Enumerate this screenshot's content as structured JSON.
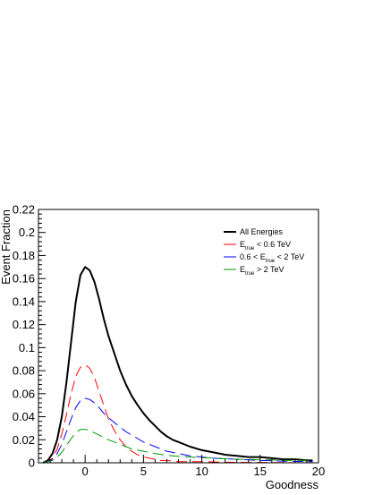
{
  "chart_data": {
    "type": "line",
    "xlabel": "Goodness",
    "ylabel": "Event Fraction",
    "xlim": [
      -4,
      20
    ],
    "ylim": [
      0,
      0.22
    ],
    "x_ticks": [
      0,
      5,
      10,
      15,
      20
    ],
    "y_ticks": [
      0,
      0.02,
      0.04,
      0.06,
      0.08,
      0.1,
      0.12,
      0.14,
      0.16,
      0.18,
      0.2,
      0.22
    ],
    "x_tick_labels": [
      "0",
      "5",
      "10",
      "15",
      "20"
    ],
    "y_tick_labels": [
      "0",
      "0.02",
      "0.04",
      "0.06",
      "0.08",
      "0.1",
      "0.12",
      "0.14",
      "0.16",
      "0.18",
      "0.2",
      "0.22"
    ],
    "grid": false,
    "legend_position": "top-right",
    "series": [
      {
        "name": "All Energies",
        "legend": {
          "main": "All Energies"
        },
        "color": "#000000",
        "style": "solid",
        "x": [
          -3.6,
          -3.2,
          -2.8,
          -2.4,
          -2.0,
          -1.6,
          -1.2,
          -0.8,
          -0.4,
          0.0,
          0.4,
          0.8,
          1.2,
          1.6,
          2.0,
          2.5,
          3.0,
          3.5,
          4.0,
          4.5,
          5.0,
          5.5,
          6.0,
          6.5,
          7.0,
          7.5,
          8.0,
          9.0,
          10.0,
          11.0,
          12.0,
          13.0,
          14.0,
          15.0,
          16.0,
          17.0,
          18.0,
          19.0,
          19.5
        ],
        "y": [
          0.0,
          0.002,
          0.008,
          0.02,
          0.04,
          0.07,
          0.105,
          0.14,
          0.163,
          0.17,
          0.167,
          0.157,
          0.142,
          0.125,
          0.11,
          0.095,
          0.08,
          0.068,
          0.058,
          0.05,
          0.043,
          0.037,
          0.032,
          0.027,
          0.023,
          0.02,
          0.018,
          0.014,
          0.011,
          0.009,
          0.007,
          0.006,
          0.005,
          0.005,
          0.004,
          0.003,
          0.003,
          0.002,
          0.002
        ]
      },
      {
        "name": "E_true < 0.6 TeV",
        "legend": {
          "pre": "E",
          "sub": "true",
          "post": " < 0.6 TeV"
        },
        "color": "#ff0000",
        "style": "dashed",
        "x": [
          -3.6,
          -3.2,
          -2.8,
          -2.4,
          -2.0,
          -1.6,
          -1.2,
          -0.8,
          -0.4,
          0.0,
          0.4,
          0.8,
          1.2,
          1.6,
          2.0,
          2.5,
          3.0,
          3.5,
          4.0,
          4.5,
          5.0,
          5.5,
          6.0,
          6.5,
          7.0,
          8.0,
          9.0,
          10.0,
          12.0,
          14.0,
          16.0,
          18.0,
          19.5
        ],
        "y": [
          0.0,
          0.001,
          0.004,
          0.012,
          0.025,
          0.042,
          0.06,
          0.075,
          0.083,
          0.085,
          0.082,
          0.074,
          0.062,
          0.05,
          0.038,
          0.028,
          0.02,
          0.014,
          0.01,
          0.007,
          0.005,
          0.004,
          0.003,
          0.002,
          0.002,
          0.001,
          0.001,
          0.001,
          0.0005,
          0.0003,
          0.0002,
          0.0001,
          0.0001
        ]
      },
      {
        "name": "0.6 < E_true < 2 TeV",
        "legend": {
          "pre": "0.6 < E",
          "sub": "true",
          "post": " < 2 TeV"
        },
        "color": "#0000ff",
        "style": "dashed",
        "x": [
          -3.6,
          -3.2,
          -2.8,
          -2.4,
          -2.0,
          -1.6,
          -1.2,
          -0.8,
          -0.4,
          0.0,
          0.4,
          0.8,
          1.2,
          1.6,
          2.0,
          2.5,
          3.0,
          3.5,
          4.0,
          4.5,
          5.0,
          5.5,
          6.0,
          6.5,
          7.0,
          7.5,
          8.0,
          9.0,
          10.0,
          11.0,
          12.0,
          13.0,
          14.0,
          15.0,
          16.0,
          17.0,
          18.0,
          19.5
        ],
        "y": [
          0.0,
          0.001,
          0.003,
          0.008,
          0.016,
          0.027,
          0.038,
          0.048,
          0.054,
          0.056,
          0.055,
          0.052,
          0.048,
          0.043,
          0.039,
          0.035,
          0.031,
          0.027,
          0.024,
          0.021,
          0.018,
          0.016,
          0.014,
          0.012,
          0.01,
          0.009,
          0.008,
          0.006,
          0.005,
          0.004,
          0.0035,
          0.003,
          0.0025,
          0.002,
          0.0018,
          0.0015,
          0.0012,
          0.001
        ]
      },
      {
        "name": "E_true > 2 TeV",
        "legend": {
          "pre": "E",
          "sub": "true",
          "post": " > 2 TeV"
        },
        "color": "#009900",
        "style": "dashed",
        "x": [
          -3.6,
          -3.2,
          -2.8,
          -2.4,
          -2.0,
          -1.6,
          -1.2,
          -0.8,
          -0.4,
          0.0,
          0.4,
          0.8,
          1.2,
          1.6,
          2.0,
          2.5,
          3.0,
          3.5,
          4.0,
          4.5,
          5.0,
          5.5,
          6.0,
          7.0,
          8.0,
          9.0,
          10.0,
          11.0,
          12.0,
          13.0,
          14.0,
          15.0,
          16.0,
          17.0,
          18.0,
          19.5
        ],
        "y": [
          0.0,
          0.001,
          0.002,
          0.005,
          0.009,
          0.015,
          0.021,
          0.026,
          0.029,
          0.029,
          0.028,
          0.026,
          0.024,
          0.022,
          0.02,
          0.018,
          0.016,
          0.014,
          0.012,
          0.011,
          0.01,
          0.009,
          0.008,
          0.0065,
          0.0055,
          0.005,
          0.0045,
          0.004,
          0.0035,
          0.003,
          0.003,
          0.0025,
          0.0025,
          0.002,
          0.002,
          0.002
        ]
      }
    ]
  }
}
